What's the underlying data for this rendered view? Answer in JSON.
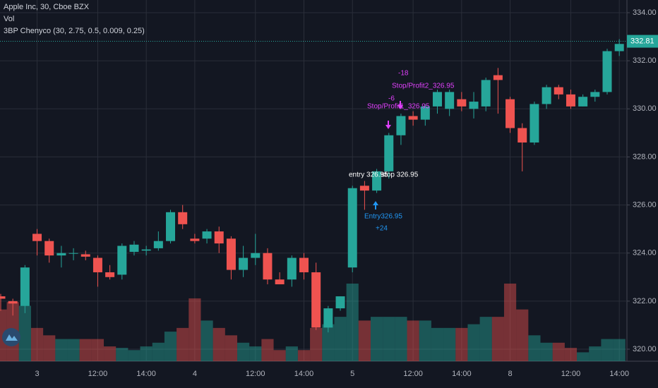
{
  "chart_data": {
    "type": "candlestick",
    "title": "Apple Inc, 30, Cboe BZX",
    "subtitles": [
      "Vol",
      "3BP Chenyco (30, 2.75, 0.5, 0.009, 0.25)"
    ],
    "categories": [
      null,
      null,
      null,
      "3",
      null,
      null,
      null,
      null,
      "12:00",
      null,
      null,
      null,
      "14:00",
      null,
      null,
      null,
      "4",
      null,
      null,
      null,
      null,
      "12:00",
      null,
      null,
      null,
      "14:00",
      null,
      null,
      null,
      "5",
      null,
      null,
      null,
      null,
      "12:00",
      null,
      null,
      null,
      "14:00",
      null,
      null,
      null,
      "8",
      null,
      null,
      null,
      null,
      "12:00",
      null,
      null,
      null,
      "14:00"
    ],
    "open": [
      322.2,
      322.0,
      321.8,
      324.8,
      324.5,
      323.9,
      324.0,
      323.95,
      323.8,
      323.2,
      323.1,
      324.05,
      324.1,
      324.2,
      324.5,
      325.7,
      324.6,
      324.6,
      324.9,
      324.6,
      323.3,
      323.8,
      324.0,
      322.9,
      322.9,
      323.8,
      323.2,
      320.9,
      321.7,
      323.4,
      326.8,
      326.6,
      327.4,
      328.9,
      329.7,
      329.55,
      330.1,
      330.0,
      330.4,
      330.0,
      330.1,
      331.4,
      330.4,
      329.2,
      328.6,
      330.2,
      330.9,
      330.6,
      330.1,
      330.5,
      330.7,
      332.4
    ],
    "high": [
      322.3,
      322.1,
      323.5,
      325.0,
      324.6,
      324.3,
      324.2,
      324.1,
      323.9,
      323.5,
      324.4,
      324.5,
      324.3,
      324.9,
      325.8,
      326.0,
      324.8,
      325.0,
      325.1,
      324.7,
      324.3,
      324.8,
      324.2,
      323.2,
      323.9,
      324.0,
      323.6,
      321.8,
      322.2,
      326.8,
      327.0,
      327.5,
      329.0,
      329.8,
      329.9,
      330.2,
      330.8,
      330.8,
      330.7,
      330.7,
      331.3,
      331.7,
      330.5,
      329.4,
      330.3,
      331.0,
      331.0,
      330.8,
      330.6,
      330.8,
      332.5,
      332.9
    ],
    "low": [
      321.6,
      321.4,
      321.5,
      323.9,
      323.6,
      323.4,
      323.7,
      323.7,
      322.6,
      322.9,
      322.9,
      323.9,
      323.9,
      324.1,
      324.4,
      325.0,
      324.4,
      324.4,
      324.0,
      322.9,
      323.0,
      323.5,
      322.7,
      322.7,
      322.6,
      322.9,
      320.8,
      320.7,
      321.6,
      323.2,
      325.8,
      326.5,
      327.1,
      328.5,
      329.3,
      329.3,
      329.8,
      329.7,
      329.9,
      329.6,
      329.9,
      329.8,
      329.0,
      327.4,
      328.5,
      330.0,
      330.4,
      330.0,
      330.1,
      330.3,
      330.6,
      332.2
    ],
    "close": [
      322.1,
      321.9,
      323.4,
      324.5,
      323.9,
      324.0,
      324.0,
      323.85,
      323.2,
      323.0,
      324.3,
      324.35,
      324.15,
      324.5,
      325.7,
      325.2,
      324.5,
      324.9,
      324.4,
      323.3,
      323.8,
      324.0,
      322.9,
      322.7,
      323.8,
      323.2,
      320.9,
      321.7,
      322.2,
      326.7,
      326.6,
      327.4,
      328.9,
      329.7,
      329.55,
      330.1,
      330.7,
      330.7,
      330.1,
      330.3,
      331.2,
      331.2,
      329.2,
      328.6,
      330.2,
      330.9,
      330.6,
      330.1,
      330.5,
      330.7,
      332.4,
      332.7
    ],
    "volume": [
      70,
      80,
      75,
      45,
      35,
      30,
      30,
      30,
      30,
      20,
      18,
      15,
      20,
      25,
      40,
      45,
      85,
      55,
      45,
      35,
      25,
      20,
      30,
      15,
      20,
      15,
      45,
      50,
      60,
      105,
      55,
      60,
      60,
      60,
      55,
      55,
      45,
      45,
      45,
      50,
      60,
      60,
      105,
      70,
      35,
      25,
      25,
      18,
      12,
      20,
      30,
      30
    ],
    "up_color": "#26a69a",
    "down_color": "#ef5350",
    "ylim": [
      320,
      334
    ],
    "yticks": [
      {
        "value": 320,
        "label": "320.00"
      },
      {
        "value": 322,
        "label": "322.00"
      },
      {
        "value": 324,
        "label": "324.00"
      },
      {
        "value": 326,
        "label": "326.00"
      },
      {
        "value": 328,
        "label": "328.00"
      },
      {
        "value": 330,
        "label": "330.00"
      },
      {
        "value": 332,
        "label": "332.00"
      },
      {
        "value": 334,
        "label": "334.00"
      }
    ],
    "last_price": 332.81,
    "grid": true,
    "annotations": [
      "entry 326.95",
      "stop 326.95",
      "Entry326.95",
      "+24",
      "Stop/Profit1_326.95",
      "-6",
      "Stop/Profit2_326.95",
      "-18"
    ]
  }
}
